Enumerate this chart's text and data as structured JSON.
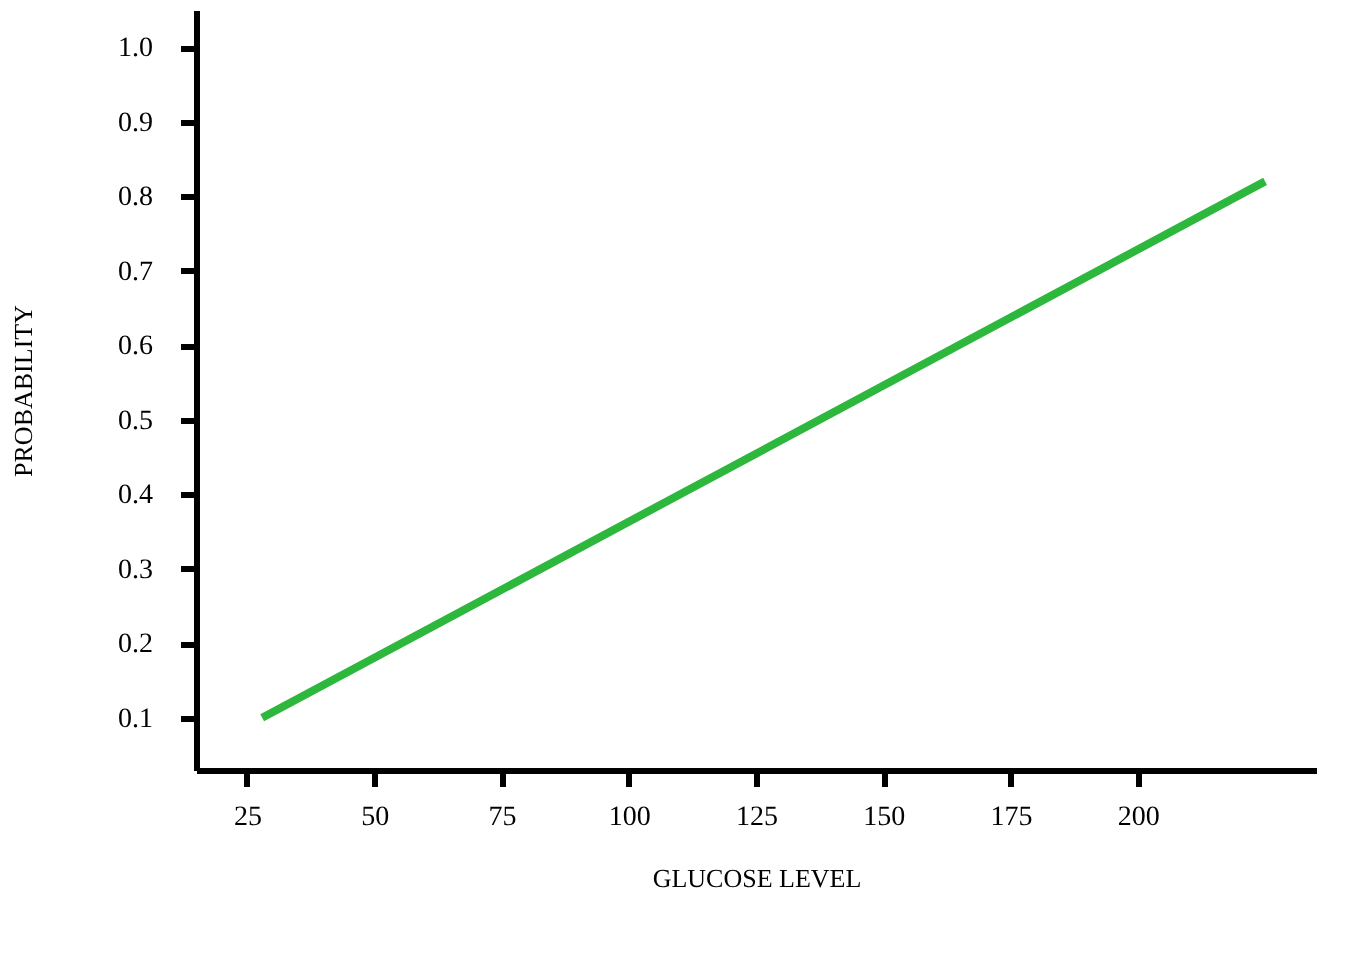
{
  "chart_data": {
    "type": "line",
    "xlabel": "GLUCOSE LEVEL",
    "ylabel": "PROBABILITY",
    "x": [
      28,
      225
    ],
    "series": [
      {
        "color": "#2db83d",
        "values": [
          0.1,
          0.82
        ]
      }
    ],
    "xlim": [
      15,
      235
    ],
    "xticks": [
      25,
      50,
      75,
      100,
      125,
      150,
      175,
      200
    ],
    "ylim": [
      0.03,
      1.05
    ],
    "yticks": [
      0.1,
      0.2,
      0.3,
      0.4,
      0.5,
      0.6,
      0.7,
      0.8,
      0.9,
      {
        "value": 1,
        "label": "1.0"
      }
    ],
    "grid": false,
    "marker": "none",
    "line_style": "solid"
  }
}
